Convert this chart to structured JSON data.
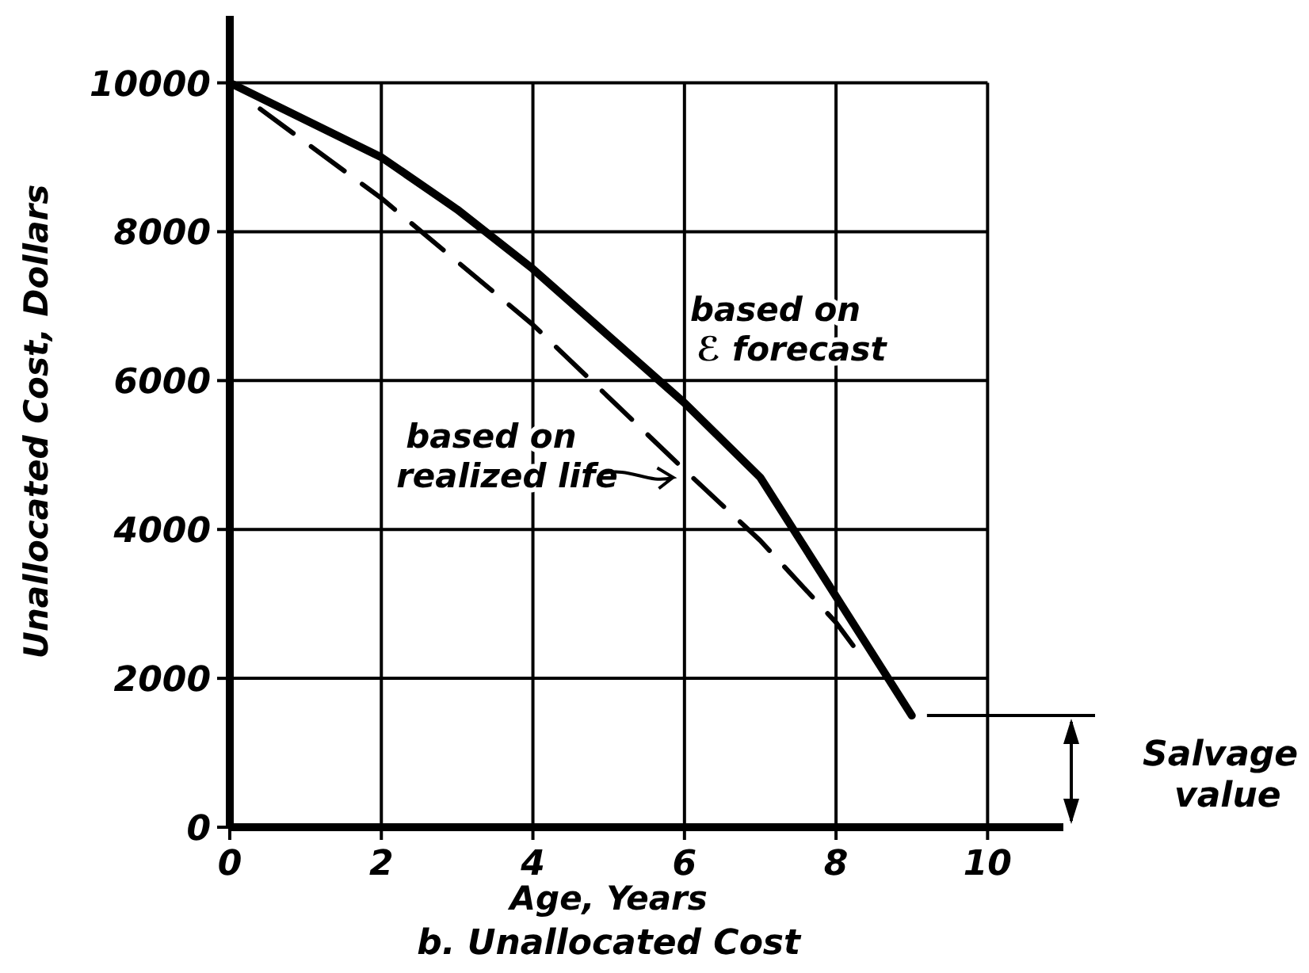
{
  "chart_data": {
    "type": "line",
    "xlabel": "Age, Years",
    "ylabel": "Unallocated Cost, Dollars",
    "annotations": [
      "b. Unallocated Cost"
    ],
    "xlim": [
      0,
      11
    ],
    "ylim": [
      0,
      10900
    ],
    "xticks": [
      0,
      2,
      4,
      6,
      8,
      10
    ],
    "yticks": [
      0,
      2000,
      4000,
      6000,
      8000,
      10000
    ],
    "grid": true,
    "series": [
      {
        "name": "based on ℰ forecast",
        "color": "#000000",
        "line_style": "solid",
        "x": [
          0,
          1,
          2,
          3,
          4,
          5,
          6,
          7,
          8,
          8.5,
          9
        ],
        "values": [
          10000,
          9500,
          9000,
          8300,
          7500,
          6600,
          5700,
          4700,
          3100,
          2300,
          1500
        ]
      },
      {
        "name": "based on realized life",
        "color": "#000000",
        "line_style": "dashed",
        "x": [
          0.4,
          2,
          4,
          6,
          7,
          8,
          8.4
        ],
        "values": [
          9650,
          8450,
          6750,
          4800,
          3850,
          2750,
          2200
        ]
      }
    ],
    "ref_lines": [
      {
        "axis": "y",
        "value": 1500,
        "label": "Salvage value",
        "color": "#000000"
      }
    ]
  }
}
